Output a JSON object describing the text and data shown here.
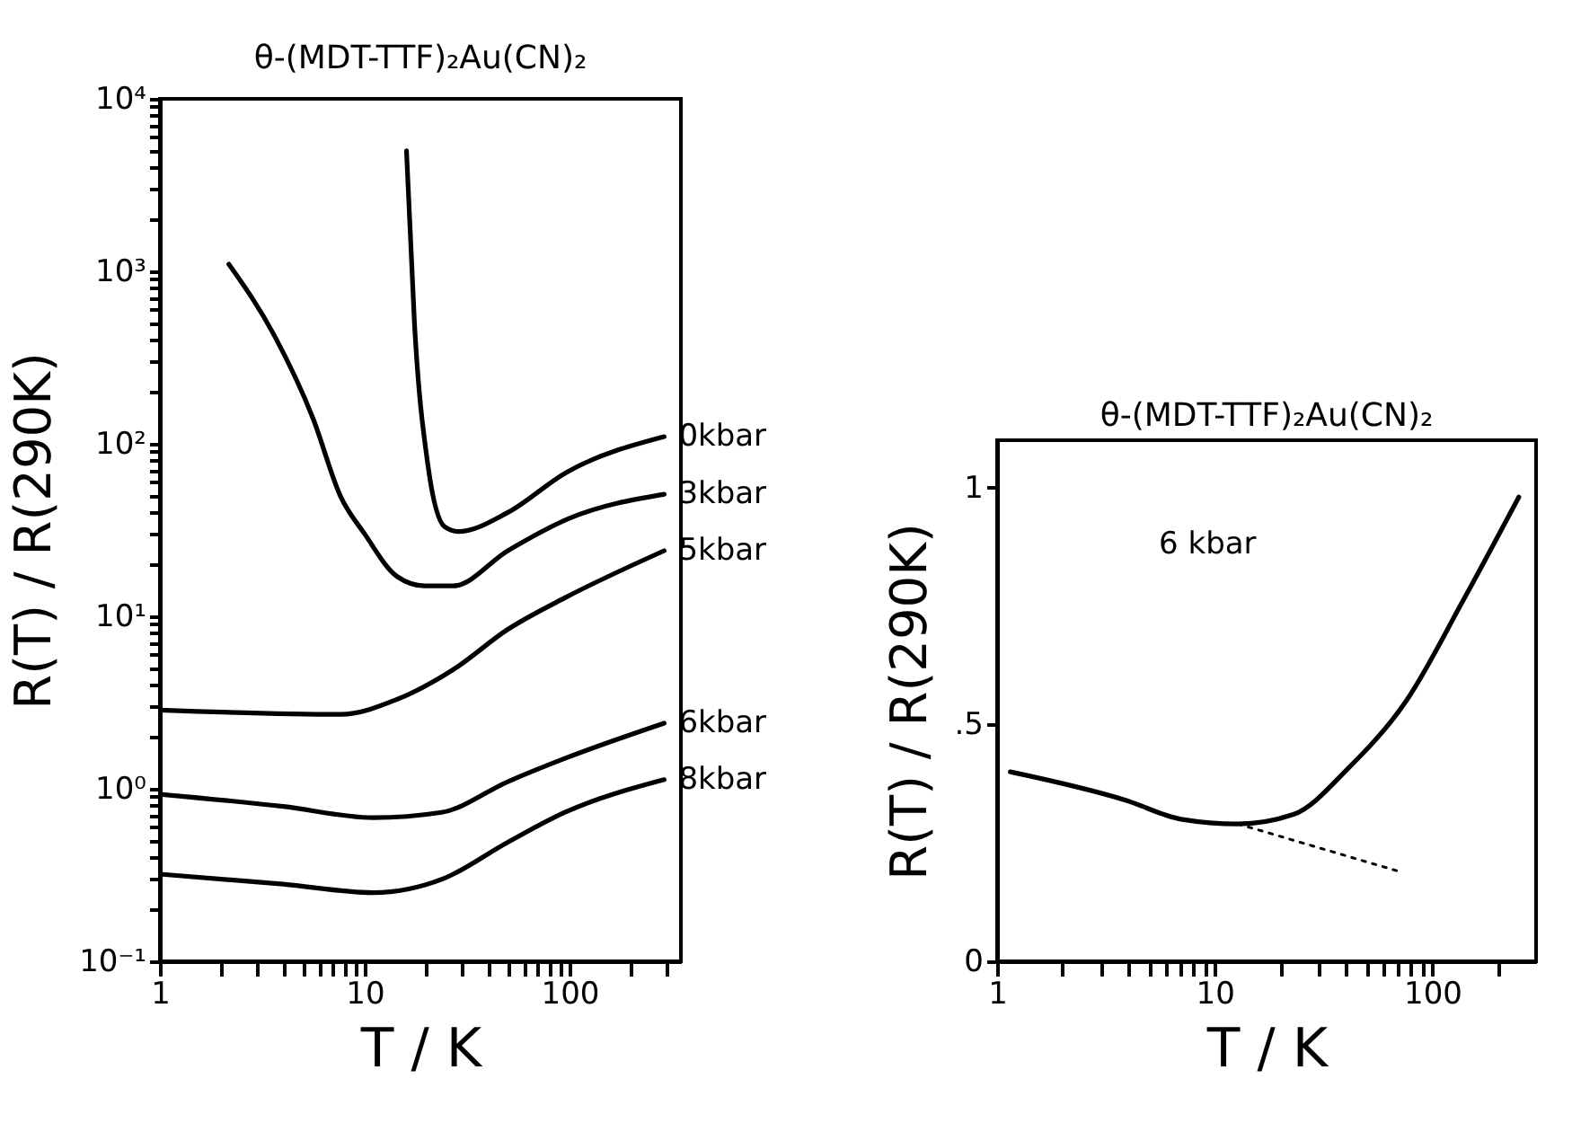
{
  "chart_data": [
    {
      "type": "line",
      "title": "θ-(MDT-TTF)₂Au(CN)₂",
      "xlabel": "T / K",
      "ylabel": "R(T) / R(290K)",
      "log": "xy",
      "grid": false,
      "xlim": [
        1,
        350
      ],
      "ylim": [
        0.1,
        10000
      ],
      "xticks": [
        1,
        {
          "value": 2,
          "label": null
        },
        {
          "value": 3,
          "label": null
        },
        {
          "value": 4,
          "label": null
        },
        {
          "value": 5,
          "label": null
        },
        {
          "value": 6,
          "label": null
        },
        {
          "value": 7,
          "label": null
        },
        {
          "value": 8,
          "label": null
        },
        {
          "value": 9,
          "label": null
        },
        10,
        {
          "value": 20,
          "label": null
        },
        {
          "value": 30,
          "label": null
        },
        {
          "value": 40,
          "label": null
        },
        {
          "value": 50,
          "label": null
        },
        {
          "value": 60,
          "label": null
        },
        {
          "value": 70,
          "label": null
        },
        {
          "value": 80,
          "label": null
        },
        {
          "value": 90,
          "label": null
        },
        100,
        {
          "value": 200,
          "label": null
        },
        {
          "value": 300,
          "label": null
        }
      ],
      "yticks": [
        {
          "value": 0.1,
          "label": "10⁻¹"
        },
        {
          "value": 0.2,
          "label": null
        },
        {
          "value": 0.3,
          "label": null
        },
        {
          "value": 0.4,
          "label": null
        },
        {
          "value": 0.5,
          "label": null
        },
        {
          "value": 0.6,
          "label": null
        },
        {
          "value": 0.7,
          "label": null
        },
        {
          "value": 0.8,
          "label": null
        },
        {
          "value": 0.9,
          "label": null
        },
        {
          "value": 1,
          "label": "10⁰"
        },
        {
          "value": 2,
          "label": null
        },
        {
          "value": 3,
          "label": null
        },
        {
          "value": 4,
          "label": null
        },
        {
          "value": 5,
          "label": null
        },
        {
          "value": 6,
          "label": null
        },
        {
          "value": 7,
          "label": null
        },
        {
          "value": 8,
          "label": null
        },
        {
          "value": 9,
          "label": null
        },
        {
          "value": 10,
          "label": "10¹"
        },
        {
          "value": 20,
          "label": null
        },
        {
          "value": 30,
          "label": null
        },
        {
          "value": 40,
          "label": null
        },
        {
          "value": 50,
          "label": null
        },
        {
          "value": 60,
          "label": null
        },
        {
          "value": 70,
          "label": null
        },
        {
          "value": 80,
          "label": null
        },
        {
          "value": 90,
          "label": null
        },
        {
          "value": 100,
          "label": "10²"
        },
        {
          "value": 200,
          "label": null
        },
        {
          "value": 300,
          "label": null
        },
        {
          "value": 400,
          "label": null
        },
        {
          "value": 500,
          "label": null
        },
        {
          "value": 600,
          "label": null
        },
        {
          "value": 700,
          "label": null
        },
        {
          "value": 800,
          "label": null
        },
        {
          "value": 900,
          "label": null
        },
        {
          "value": 1000,
          "label": "10³"
        },
        {
          "value": 2000,
          "label": null
        },
        {
          "value": 3000,
          "label": null
        },
        {
          "value": 4000,
          "label": null
        },
        {
          "value": 5000,
          "label": null
        },
        {
          "value": 6000,
          "label": null
        },
        {
          "value": 7000,
          "label": null
        },
        {
          "value": 8000,
          "label": null
        },
        {
          "value": 9000,
          "label": null
        },
        {
          "value": 10000,
          "label": "10⁴"
        }
      ],
      "series": [
        {
          "name": "0kbar",
          "color": "#000000",
          "x": [
            16,
            17.5,
            20.4,
            24.6,
            28.6,
            50,
            96,
            290
          ],
          "values": [
            5000,
            500,
            74,
            33,
            31,
            40,
            68,
            110
          ]
        },
        {
          "name": "3kbar",
          "color": "#000000",
          "x": [
            2.17,
            3.6,
            5.6,
            7.6,
            10,
            14.4,
            19.6,
            27,
            50,
            100,
            290
          ],
          "values": [
            1100,
            430,
            140,
            50,
            30,
            17,
            15,
            15,
            24,
            37,
            51
          ]
        },
        {
          "name": "5kbar",
          "color": "#000000",
          "x": [
            1,
            7.6,
            14.4,
            27,
            50,
            95,
            290
          ],
          "values": [
            2.86,
            2.7,
            3.3,
            4.9,
            8.4,
            12.8,
            24
          ]
        },
        {
          "name": "6kbar",
          "color": "#000000",
          "x": [
            1,
            4,
            11,
            23.7,
            50,
            95,
            290
          ],
          "values": [
            0.93,
            0.79,
            0.68,
            0.73,
            1.1,
            1.5,
            2.4
          ]
        },
        {
          "name": "8kbar",
          "color": "#000000",
          "x": [
            1,
            4,
            11,
            24,
            50,
            95,
            290
          ],
          "values": [
            0.32,
            0.28,
            0.25,
            0.3,
            0.49,
            0.73,
            1.13
          ]
        }
      ]
    },
    {
      "type": "line",
      "title": "θ-(MDT-TTF)₂Au(CN)₂",
      "xlabel": "T / K",
      "ylabel": "R(T) / R(290K)",
      "log": "x",
      "grid": false,
      "xlim": [
        1,
        300
      ],
      "ylim": [
        0,
        1.1
      ],
      "xticks": [
        1,
        {
          "value": 2,
          "label": null
        },
        {
          "value": 3,
          "label": null
        },
        {
          "value": 4,
          "label": null
        },
        {
          "value": 5,
          "label": null
        },
        {
          "value": 6,
          "label": null
        },
        {
          "value": 7,
          "label": null
        },
        {
          "value": 8,
          "label": null
        },
        {
          "value": 9,
          "label": null
        },
        10,
        {
          "value": 20,
          "label": null
        },
        {
          "value": 30,
          "label": null
        },
        {
          "value": 40,
          "label": null
        },
        {
          "value": 50,
          "label": null
        },
        {
          "value": 60,
          "label": null
        },
        {
          "value": 70,
          "label": null
        },
        {
          "value": 80,
          "label": null
        },
        {
          "value": 90,
          "label": null
        },
        100,
        {
          "value": 200,
          "label": null
        }
      ],
      "yticks": [
        0,
        {
          "value": 0.5,
          "label": ".5"
        },
        1
      ],
      "annotations": [
        "6 kbar"
      ],
      "series": [
        {
          "color": "#000000",
          "x": [
            1.15,
            3.9,
            7,
            12.8,
            23,
            41.6,
            76,
            138,
            250
          ],
          "values": [
            0.4,
            0.34,
            0.3,
            0.29,
            0.31,
            0.41,
            0.55,
            0.76,
            0.98
          ]
        },
        {
          "type": "line",
          "line_style": "dotted",
          "color": "#000000",
          "x": [
            12.8,
            70
          ],
          "values": [
            0.29,
            0.19
          ]
        }
      ]
    }
  ]
}
